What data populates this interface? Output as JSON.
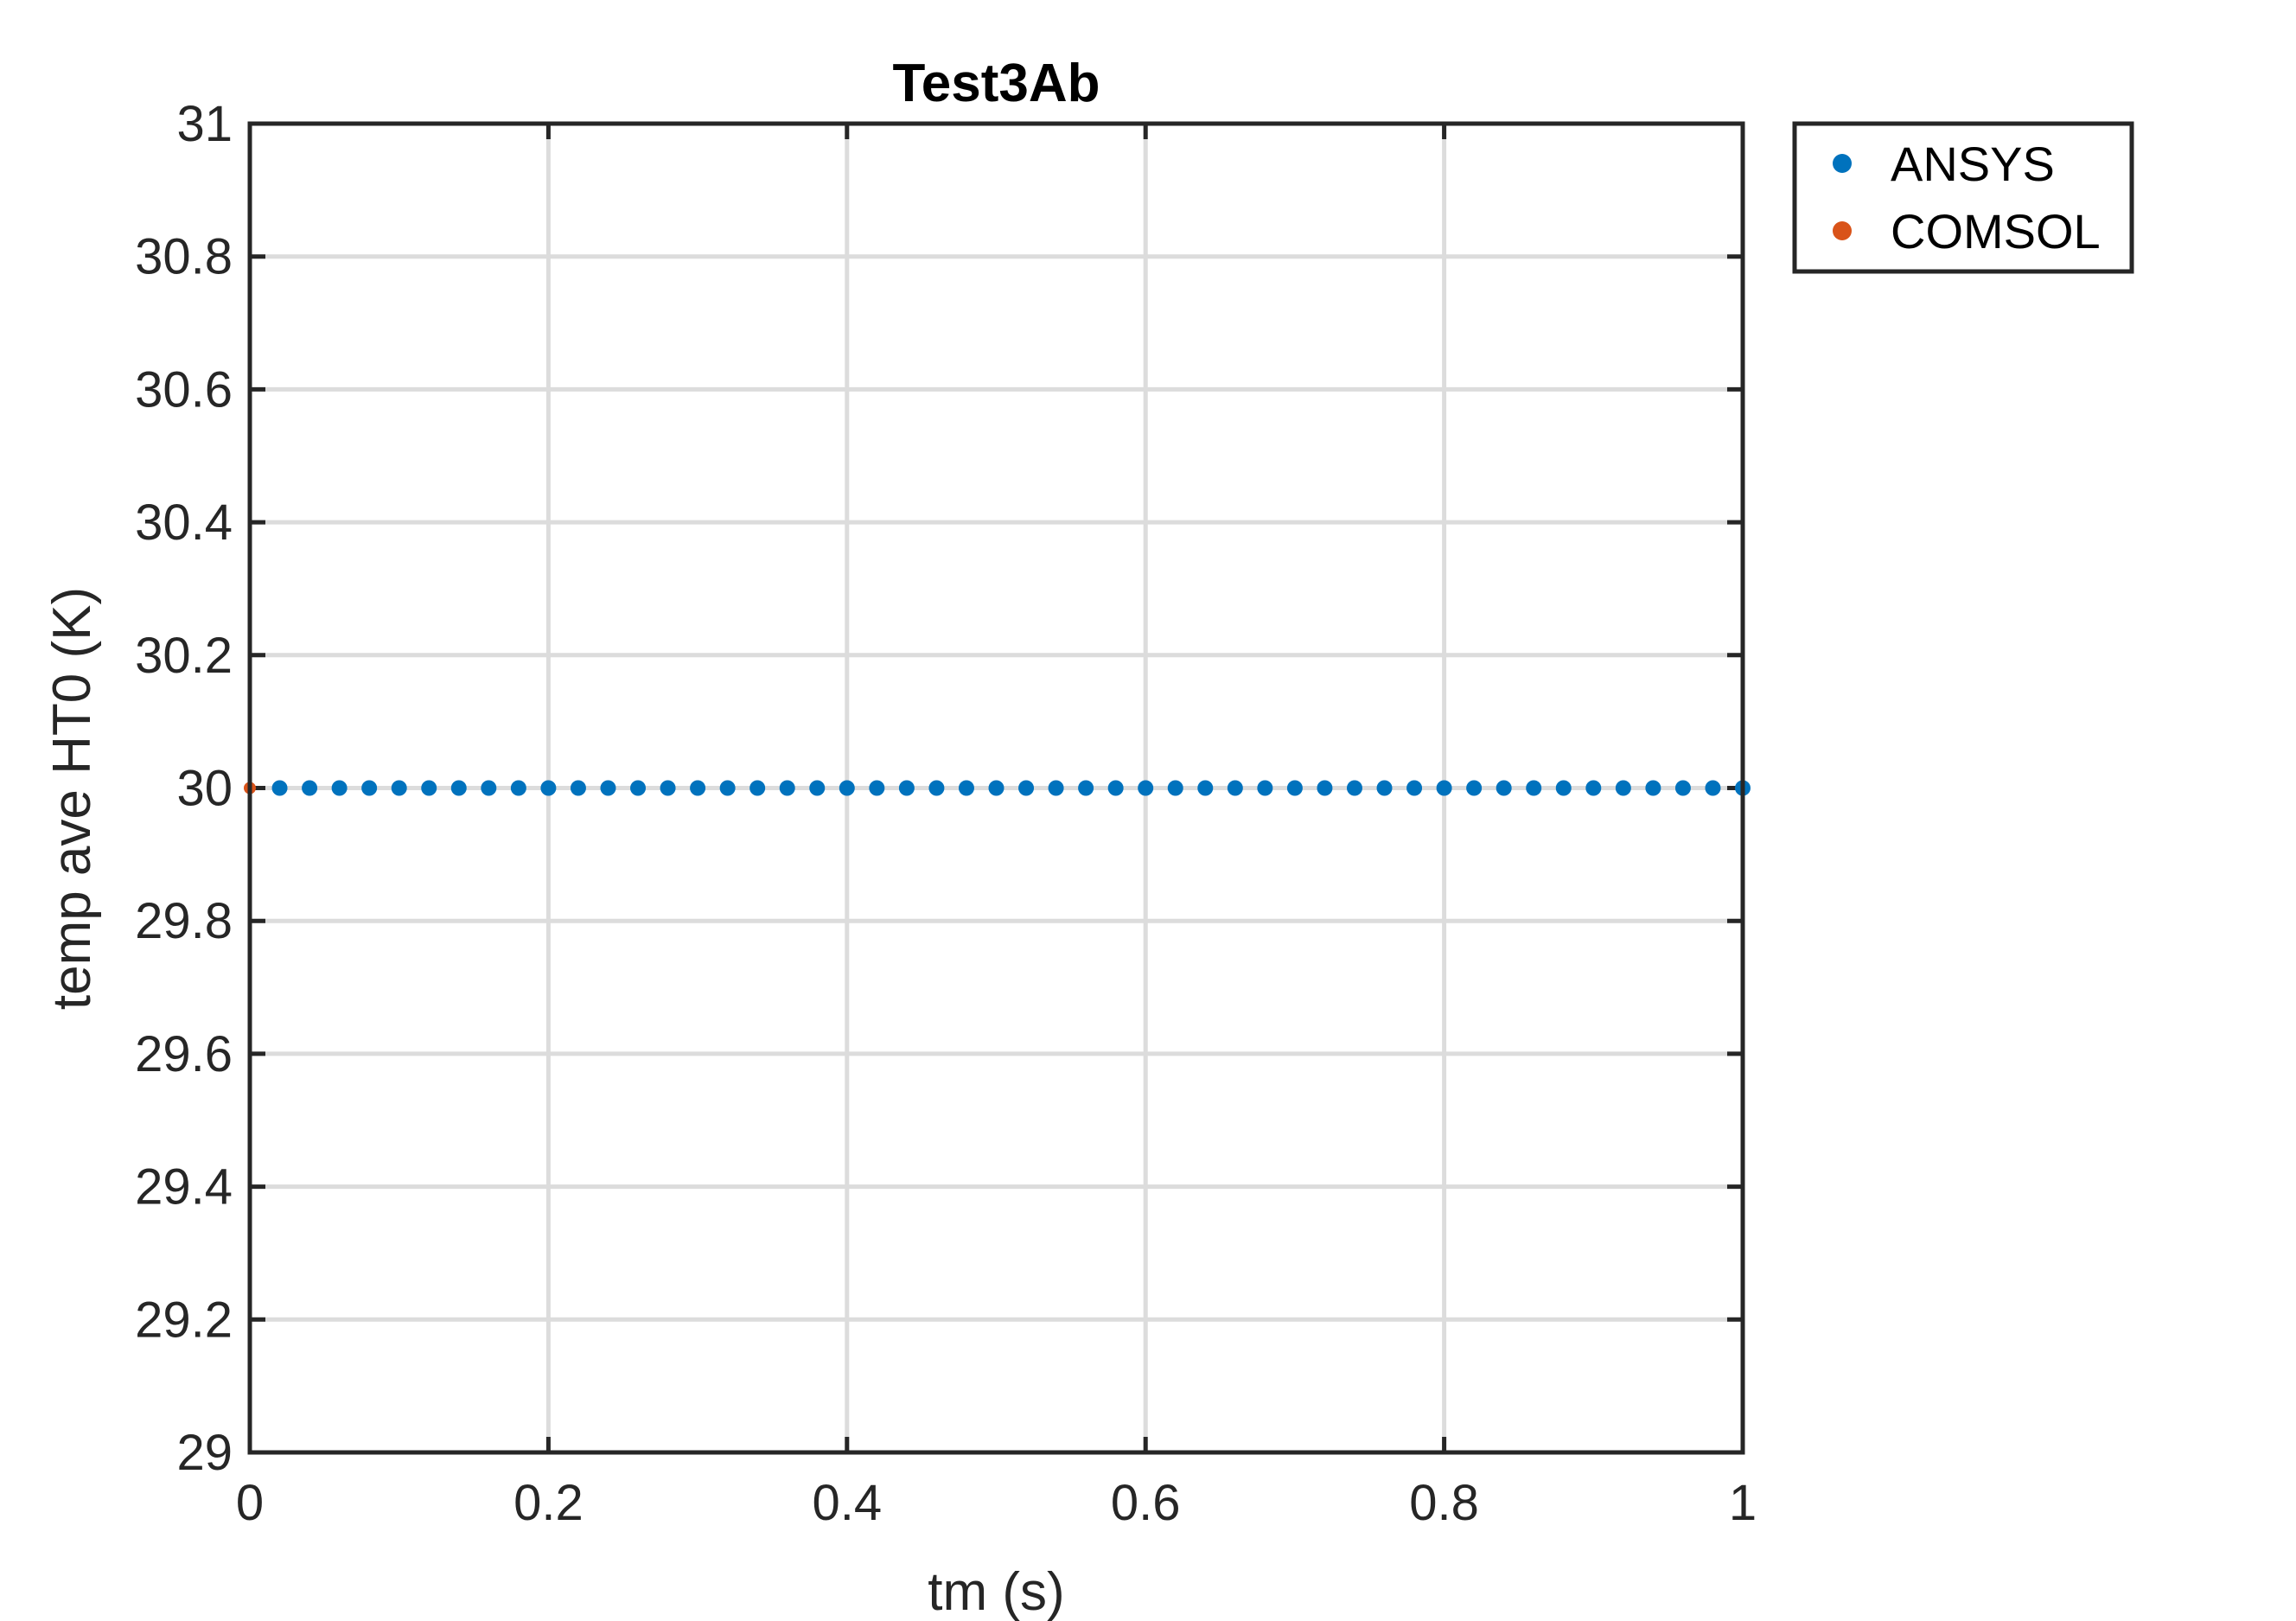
{
  "chart_data": {
    "type": "scatter",
    "title": "Test3Ab",
    "xlabel": "tm (s)",
    "ylabel": "temp ave HT0 (K)",
    "xlim": [
      0,
      1
    ],
    "ylim": [
      29,
      31
    ],
    "xticks": [
      0,
      0.2,
      0.4,
      0.6,
      0.8,
      1
    ],
    "xtick_labels": [
      "0",
      "0.2",
      "0.4",
      "0.6",
      "0.8",
      "1"
    ],
    "yticks": [
      29,
      29.2,
      29.4,
      29.6,
      29.8,
      30,
      30.2,
      30.4,
      30.6,
      30.8,
      31
    ],
    "ytick_labels": [
      "29",
      "29.2",
      "29.4",
      "29.6",
      "29.8",
      "30",
      "30.2",
      "30.4",
      "30.6",
      "30.8",
      "31"
    ],
    "grid": true,
    "legend_position": "outside-top-right",
    "series": [
      {
        "name": "ANSYS",
        "color": "#0072BD",
        "x": [
          0.02,
          0.04,
          0.06,
          0.08,
          0.1,
          0.12,
          0.14,
          0.16,
          0.18,
          0.2,
          0.22,
          0.24,
          0.26,
          0.28,
          0.3,
          0.32,
          0.34,
          0.36,
          0.38,
          0.4,
          0.42,
          0.44,
          0.46,
          0.48,
          0.5,
          0.52,
          0.54,
          0.56,
          0.58,
          0.6,
          0.62,
          0.64,
          0.66,
          0.68,
          0.7,
          0.72,
          0.74,
          0.76,
          0.78,
          0.8,
          0.82,
          0.84,
          0.86,
          0.88,
          0.9,
          0.92,
          0.94,
          0.96,
          0.98,
          1.0
        ],
        "y": [
          30,
          30,
          30,
          30,
          30,
          30,
          30,
          30,
          30,
          30,
          30,
          30,
          30,
          30,
          30,
          30,
          30,
          30,
          30,
          30,
          30,
          30,
          30,
          30,
          30,
          30,
          30,
          30,
          30,
          30,
          30,
          30,
          30,
          30,
          30,
          30,
          30,
          30,
          30,
          30,
          30,
          30,
          30,
          30,
          30,
          30,
          30,
          30,
          30,
          30
        ]
      },
      {
        "name": "COMSOL",
        "color": "#D95319",
        "x": [
          0.0,
          0.02,
          0.04,
          0.06,
          0.08,
          0.1,
          0.12,
          0.14,
          0.16,
          0.18,
          0.2,
          0.22,
          0.24,
          0.26,
          0.28,
          0.3,
          0.32,
          0.34,
          0.36,
          0.38,
          0.4,
          0.42,
          0.44,
          0.46,
          0.48,
          0.5,
          0.52,
          0.54,
          0.56,
          0.58,
          0.6,
          0.62,
          0.64,
          0.66,
          0.68,
          0.7,
          0.72,
          0.74,
          0.76,
          0.78,
          0.8,
          0.82,
          0.84,
          0.86,
          0.88,
          0.9,
          0.92,
          0.94,
          0.96,
          0.98,
          1.0
        ],
        "y": [
          30,
          30,
          30,
          30,
          30,
          30,
          30,
          30,
          30,
          30,
          30,
          30,
          30,
          30,
          30,
          30,
          30,
          30,
          30,
          30,
          30,
          30,
          30,
          30,
          30,
          30,
          30,
          30,
          30,
          30,
          30,
          30,
          30,
          30,
          30,
          30,
          30,
          30,
          30,
          30,
          30,
          30,
          30,
          30,
          30,
          30,
          30,
          30,
          30,
          30,
          30
        ]
      }
    ]
  }
}
